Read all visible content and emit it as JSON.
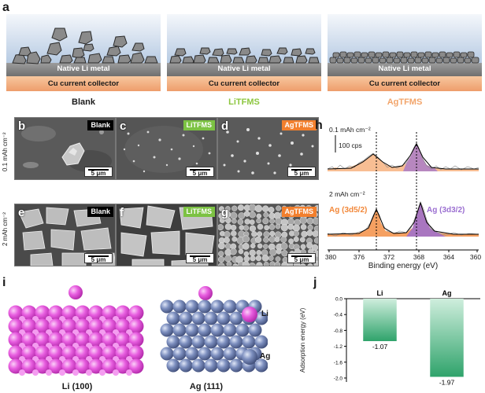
{
  "panel_letters": {
    "a": "a",
    "b": "b",
    "c": "c",
    "d": "d",
    "e": "e",
    "f": "f",
    "g": "g",
    "h": "h",
    "i": "i",
    "j": "j"
  },
  "schematic": {
    "layer_li": "Native Li metal",
    "layer_cu": "Cu current collector",
    "captions": [
      "Blank",
      "LiTFMS",
      "AgTFMS"
    ],
    "caption_colors": [
      "#1a1a1a",
      "#8dc63f",
      "#f2a46a"
    ]
  },
  "sem": {
    "tags": [
      "Blank",
      "LiTFMS",
      "AgTFMS"
    ],
    "tag_colors": [
      "#000000",
      "#7cc243",
      "#f27f2d"
    ],
    "scale_label": "5 μm",
    "row_labels": [
      "0.1 mAh cm⁻²",
      "2 mAh cm⁻²"
    ]
  },
  "xps": {
    "top_label": "0.1 mAh cm⁻²",
    "bottom_label": "2 mAh cm⁻²",
    "scale_label": "100 cps",
    "peak_left": "Ag (3d5/2)",
    "peak_right": "Ag (3d3/2)",
    "xlabel": "Binding energy (eV)",
    "xticks": [
      "380",
      "376",
      "372",
      "368",
      "364",
      "360"
    ],
    "colors": {
      "left": "#f2883a",
      "right": "#9b6fd1"
    }
  },
  "structures": {
    "left_caption": "Li (100)",
    "right_caption": "Ag (111)",
    "legend_li": "Li",
    "legend_ag": "Ag",
    "colors": {
      "li": "#e85ee0",
      "ag": "#7d8fbf"
    }
  },
  "chart_data": {
    "type": "bar",
    "categories": [
      "Li",
      "Ag"
    ],
    "values": [
      -1.07,
      -1.97
    ],
    "value_labels": [
      "-1.07",
      "-1.97"
    ],
    "title": "",
    "xlabel": "",
    "ylabel": "Adsorption energy (eV)",
    "ylim": [
      -2.1,
      0.0
    ],
    "yticks": [
      "0.0",
      "-0.4",
      "-0.8",
      "-1.2",
      "-1.6",
      "-2.0"
    ],
    "ytick_values": [
      0.0,
      -0.4,
      -0.8,
      -1.2,
      -1.6,
      -2.0
    ]
  }
}
